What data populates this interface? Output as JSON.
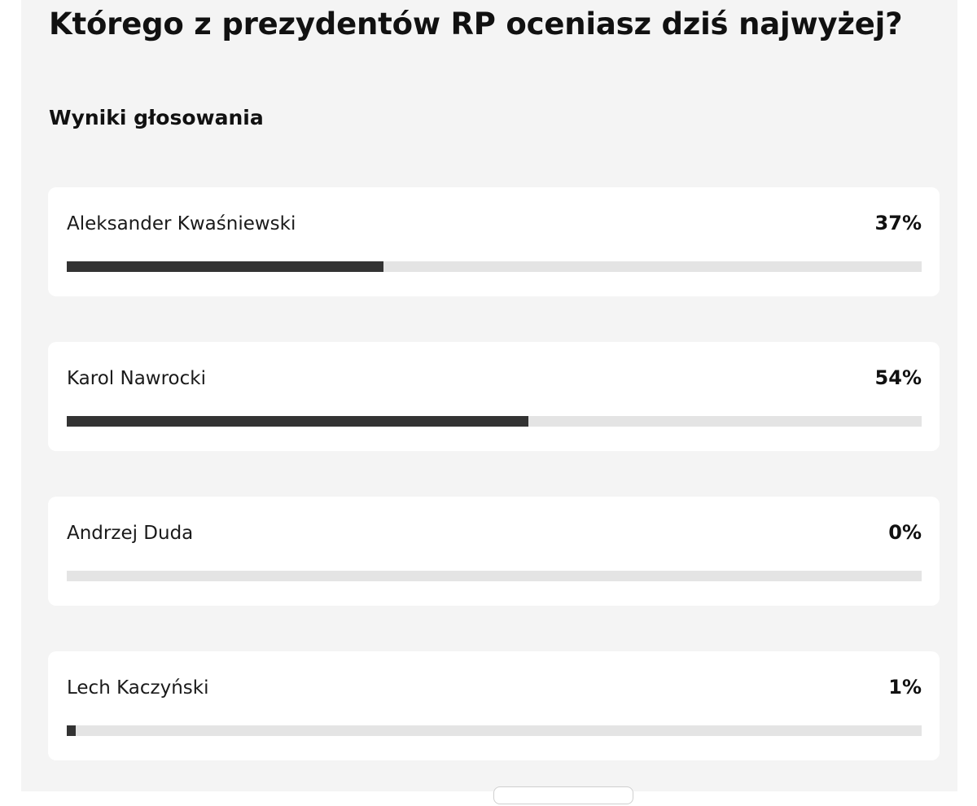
{
  "poll": {
    "title": "Którego z prezydentów RP oceniasz dziś najwyżej?",
    "results_heading": "Wyniki głosowania",
    "results": [
      {
        "name": "Aleksander Kwaśniewski",
        "percent_label": "37%",
        "fraction": 0.37
      },
      {
        "name": "Karol Nawrocki",
        "percent_label": "54%",
        "fraction": 0.54
      },
      {
        "name": "Andrzej Duda",
        "percent_label": "0%",
        "fraction": 0.0
      },
      {
        "name": "Lech Kaczyński",
        "percent_label": "1%",
        "fraction": 0.01
      }
    ]
  },
  "colors": {
    "panel_background": "#f4f4f4",
    "card_background": "#ffffff",
    "bar_fill": "#333333",
    "bar_track": "#e4e4e4"
  }
}
